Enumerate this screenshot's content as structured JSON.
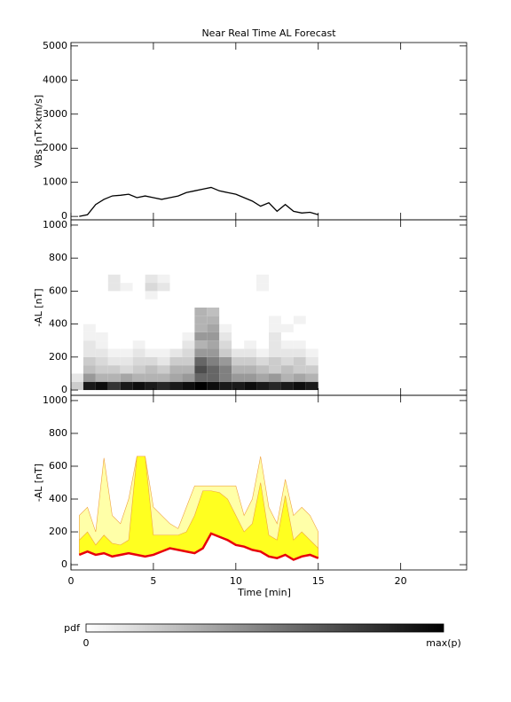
{
  "chart_data": [
    {
      "type": "line",
      "title": "Near Real Time AL Forecast",
      "ylabel": "VBs [nT×km/s]",
      "xlim": [
        0,
        24
      ],
      "ylim": [
        -100,
        5100
      ],
      "yticks": [
        0,
        1000,
        2000,
        3000,
        4000,
        5000
      ],
      "x": [
        0.5,
        1,
        1.5,
        2,
        2.5,
        3,
        3.5,
        4,
        4.5,
        5,
        5.5,
        6,
        6.5,
        7,
        7.5,
        8,
        8.5,
        9,
        9.5,
        10,
        10.5,
        11,
        11.5,
        12,
        12.5,
        13,
        13.5,
        14,
        14.5,
        15
      ],
      "series": [
        {
          "color": "#000000",
          "values": [
            0,
            50,
            350,
            500,
            600,
            620,
            650,
            550,
            600,
            550,
            500,
            550,
            600,
            700,
            750,
            800,
            850,
            750,
            700,
            650,
            550,
            450,
            300,
            400,
            150,
            350,
            150,
            100,
            120,
            50
          ]
        }
      ]
    },
    {
      "type": "heatmap",
      "ylabel": "-AL [nT]",
      "xlim": [
        0,
        24
      ],
      "ylim": [
        -32,
        1032
      ],
      "yticks": [
        0,
        200,
        400,
        600,
        800,
        1000
      ],
      "x_bins": [
        0,
        0.75,
        1.5,
        2.25,
        3,
        3.75,
        4.5,
        5.25,
        6,
        6.75,
        7.5,
        8.25,
        9,
        9.75,
        10.5,
        11.25,
        12,
        12.75,
        13.5,
        14.25,
        15
      ],
      "y_bins": [
        0,
        50,
        100,
        150,
        200,
        250,
        300,
        350,
        400,
        450,
        500,
        550,
        600,
        650,
        700
      ],
      "pdf": [
        [
          0.2,
          0.9,
          0.95,
          0.8,
          0.9,
          0.95,
          0.9,
          0.85,
          0.9,
          0.95,
          1,
          0.95,
          0.9,
          0.9,
          0.95,
          0.9,
          0.85,
          0.9,
          0.95,
          0.9
        ],
        [
          0.1,
          0.4,
          0.3,
          0.3,
          0.35,
          0.3,
          0.3,
          0.3,
          0.35,
          0.4,
          0.6,
          0.6,
          0.5,
          0.4,
          0.4,
          0.35,
          0.4,
          0.3,
          0.35,
          0.3
        ],
        [
          0,
          0.25,
          0.2,
          0.2,
          0.15,
          0.2,
          0.25,
          0.2,
          0.3,
          0.3,
          0.7,
          0.6,
          0.5,
          0.3,
          0.3,
          0.25,
          0.2,
          0.25,
          0.2,
          0.2
        ],
        [
          0,
          0.2,
          0.15,
          0.1,
          0.1,
          0.15,
          0.15,
          0.1,
          0.2,
          0.2,
          0.6,
          0.5,
          0.4,
          0.2,
          0.2,
          0.15,
          0.2,
          0.15,
          0.2,
          0.1
        ],
        [
          0,
          0.1,
          0.1,
          0.05,
          0.05,
          0.1,
          0.05,
          0.05,
          0.1,
          0.15,
          0.4,
          0.4,
          0.2,
          0.1,
          0.1,
          0.05,
          0.1,
          0.1,
          0.1,
          0.05
        ],
        [
          0,
          0.1,
          0.05,
          0,
          0,
          0.05,
          0,
          0,
          0,
          0.1,
          0.3,
          0.35,
          0.15,
          0,
          0.05,
          0,
          0.1,
          0.05,
          0.05,
          0
        ],
        [
          0,
          0.05,
          0.05,
          0,
          0,
          0,
          0,
          0,
          0,
          0.05,
          0.4,
          0.4,
          0.1,
          0,
          0,
          0,
          0.1,
          0,
          0,
          0
        ],
        [
          0,
          0.05,
          0,
          0,
          0,
          0,
          0,
          0,
          0,
          0,
          0.3,
          0.35,
          0.05,
          0,
          0,
          0,
          0.05,
          0.05,
          0,
          0
        ],
        [
          0,
          0,
          0,
          0,
          0,
          0,
          0,
          0,
          0,
          0,
          0.3,
          0.3,
          0,
          0,
          0,
          0,
          0.05,
          0,
          0.05,
          0
        ],
        [
          0,
          0,
          0,
          0,
          0,
          0,
          0,
          0,
          0,
          0,
          0.3,
          0.25,
          0,
          0,
          0,
          0,
          0,
          0,
          0,
          0
        ],
        [
          0,
          0,
          0,
          0,
          0,
          0,
          0,
          0,
          0,
          0,
          0,
          0,
          0,
          0,
          0,
          0,
          0,
          0,
          0,
          0
        ],
        [
          0,
          0,
          0,
          0,
          0,
          0,
          0.05,
          0,
          0,
          0,
          0,
          0,
          0,
          0,
          0,
          0,
          0,
          0,
          0,
          0
        ],
        [
          0,
          0,
          0,
          0.1,
          0.05,
          0,
          0.15,
          0.1,
          0,
          0,
          0,
          0,
          0,
          0,
          0,
          0.05,
          0,
          0,
          0,
          0
        ],
        [
          0,
          0,
          0,
          0.1,
          0,
          0,
          0.1,
          0.05,
          0,
          0,
          0,
          0,
          0,
          0,
          0,
          0.05,
          0,
          0,
          0,
          0
        ]
      ],
      "colorbar": {
        "label": "pdf",
        "min_label": "0",
        "max_label": "max(p)"
      }
    },
    {
      "type": "area",
      "ylabel": "-AL [nT]",
      "xlabel": "Time [min]",
      "xlim": [
        0,
        24
      ],
      "xticks": [
        0,
        5,
        10,
        15,
        20
      ],
      "ylim": [
        -32,
        1032
      ],
      "yticks": [
        0,
        200,
        400,
        600,
        800,
        1000
      ],
      "x": [
        0.5,
        1,
        1.5,
        2,
        2.5,
        3,
        3.5,
        4,
        4.5,
        5,
        5.5,
        6,
        6.5,
        7,
        7.5,
        8,
        8.5,
        9,
        9.5,
        10,
        10.5,
        11,
        11.5,
        12,
        12.5,
        13,
        13.5,
        14,
        14.5,
        15
      ],
      "series": [
        {
          "color": "#e8000b",
          "values": [
            60,
            80,
            60,
            70,
            50,
            60,
            70,
            60,
            50,
            60,
            80,
            100,
            90,
            80,
            70,
            100,
            190,
            170,
            150,
            120,
            110,
            90,
            80,
            50,
            40,
            60,
            30,
            50,
            60,
            40
          ]
        },
        {
          "color": "#ffff20",
          "values": [
            150,
            200,
            120,
            180,
            130,
            120,
            150,
            660,
            660,
            180,
            180,
            180,
            180,
            200,
            300,
            450,
            450,
            440,
            400,
            300,
            200,
            250,
            500,
            180,
            150,
            420,
            150,
            200,
            150,
            100
          ]
        },
        {
          "color": "#ffffa8",
          "values": [
            300,
            350,
            200,
            650,
            300,
            250,
            400,
            660,
            660,
            350,
            300,
            250,
            220,
            350,
            480,
            480,
            480,
            480,
            480,
            480,
            300,
            400,
            660,
            350,
            250,
            520,
            300,
            350,
            300,
            200
          ]
        }
      ]
    }
  ]
}
